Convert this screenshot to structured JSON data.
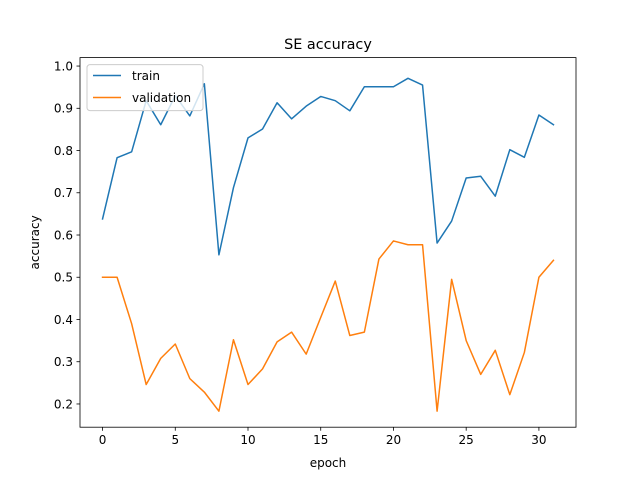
{
  "chart_data": {
    "type": "line",
    "title": "SE accuracy",
    "xlabel": "epoch",
    "ylabel": "accuracy",
    "xlim": [
      -1.55,
      32.55
    ],
    "ylim": [
      0.145,
      1.02
    ],
    "xticks": [
      0,
      5,
      10,
      15,
      20,
      25,
      30
    ],
    "yticks": [
      0.2,
      0.3,
      0.4,
      0.5,
      0.6,
      0.7,
      0.8,
      0.9,
      1.0
    ],
    "ytick_labels": [
      "0.2",
      "0.3",
      "0.4",
      "0.5",
      "0.6",
      "0.7",
      "0.8",
      "0.9",
      "1.0"
    ],
    "grid": false,
    "legend_position": "top-left",
    "x": [
      0,
      1,
      2,
      3,
      4,
      5,
      6,
      7,
      8,
      9,
      10,
      11,
      12,
      13,
      14,
      15,
      16,
      17,
      18,
      19,
      20,
      21,
      22,
      23,
      24,
      25,
      26,
      27,
      28,
      29,
      30,
      31
    ],
    "series": [
      {
        "name": "train",
        "color": "#1f77b4",
        "values": [
          0.638,
          0.783,
          0.797,
          0.918,
          0.861,
          0.93,
          0.882,
          0.958,
          0.553,
          0.712,
          0.83,
          0.851,
          0.913,
          0.875,
          0.905,
          0.928,
          0.918,
          0.894,
          0.951,
          0.951,
          0.951,
          0.971,
          0.955,
          0.581,
          0.633,
          0.735,
          0.739,
          0.692,
          0.802,
          0.784,
          0.884,
          0.861
        ]
      },
      {
        "name": "validation",
        "color": "#ff7f0e",
        "values": [
          0.5,
          0.5,
          0.39,
          0.246,
          0.308,
          0.342,
          0.26,
          0.228,
          0.183,
          0.352,
          0.246,
          0.283,
          0.347,
          0.37,
          0.318,
          0.405,
          0.491,
          0.362,
          0.37,
          0.543,
          0.586,
          0.577,
          0.577,
          0.183,
          0.495,
          0.35,
          0.27,
          0.327,
          0.222,
          0.322,
          0.5,
          0.54
        ]
      }
    ]
  }
}
